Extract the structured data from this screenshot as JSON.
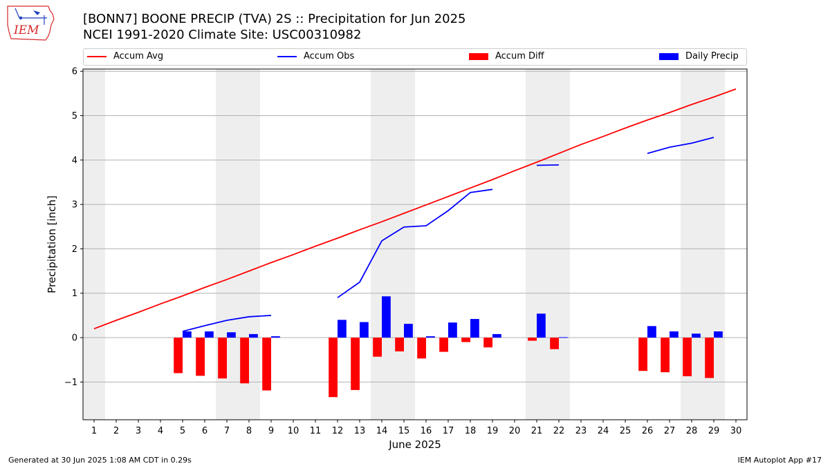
{
  "header": {
    "title": "[BONN7] BOONE PRECIP (TVA) 2S :: Precipitation for Jun 2025",
    "subtitle": "NCEI 1991-2020 Climate Site: USC00310982"
  },
  "logo": {
    "text": "IEM",
    "color": "#d62728"
  },
  "footer": {
    "left": "Generated at 30 Jun 2025 1:08 AM CDT in 0.29s",
    "right": "IEM Autoplot App #17"
  },
  "legend": [
    {
      "label": "Accum Avg",
      "kind": "line",
      "color": "#ff0000"
    },
    {
      "label": "Accum Obs",
      "kind": "line",
      "color": "#0000ff"
    },
    {
      "label": "Accum Diff",
      "kind": "bar",
      "color": "#ff0000"
    },
    {
      "label": "Daily Precip",
      "kind": "bar",
      "color": "#0000ff"
    }
  ],
  "chart_data": {
    "type": "bar",
    "xlabel": "June 2025",
    "ylabel": "Precipitation [inch]",
    "x": [
      1,
      2,
      3,
      4,
      5,
      6,
      7,
      8,
      9,
      10,
      11,
      12,
      13,
      14,
      15,
      16,
      17,
      18,
      19,
      20,
      21,
      22,
      23,
      24,
      25,
      26,
      27,
      28,
      29,
      30
    ],
    "ylim": [
      -1.85,
      6.05
    ],
    "yticks": [
      -1,
      0,
      1,
      2,
      3,
      4,
      5,
      6
    ],
    "ytick_labels": [
      "−1",
      "0",
      "1",
      "2",
      "3",
      "4",
      "5",
      "6"
    ],
    "grid": true,
    "legend_position": "top",
    "shaded_weekends": [
      [
        1,
        1
      ],
      [
        7,
        8
      ],
      [
        14,
        15
      ],
      [
        21,
        22
      ],
      [
        28,
        29
      ]
    ],
    "colors": {
      "avg": "#ff0000",
      "obs": "#0000ff",
      "diff": "#ff0000",
      "daily": "#0000ff",
      "shade": "#eeeeee"
    },
    "series": [
      {
        "name": "Accum Avg",
        "kind": "line",
        "values": [
          0.2,
          0.39,
          0.57,
          0.76,
          0.94,
          1.13,
          1.31,
          1.5,
          1.69,
          1.87,
          2.06,
          2.24,
          2.43,
          2.61,
          2.8,
          2.99,
          3.18,
          3.37,
          3.56,
          3.76,
          3.95,
          4.15,
          4.35,
          4.53,
          4.72,
          4.9,
          5.07,
          5.25,
          5.42,
          5.6
        ]
      },
      {
        "name": "Accum Obs",
        "kind": "line",
        "values": [
          null,
          null,
          null,
          null,
          0.14,
          0.27,
          0.39,
          0.47,
          0.5,
          null,
          null,
          0.9,
          1.25,
          2.18,
          2.49,
          2.52,
          2.86,
          3.27,
          3.34,
          null,
          3.88,
          3.89,
          null,
          null,
          null,
          4.15,
          4.29,
          4.38,
          4.51,
          null
        ]
      },
      {
        "name": "Accum Diff",
        "kind": "bar",
        "values": [
          null,
          null,
          null,
          null,
          -0.8,
          -0.86,
          -0.92,
          -1.03,
          -1.19,
          null,
          null,
          -1.34,
          -1.18,
          -0.43,
          -0.31,
          -0.47,
          -0.32,
          -0.1,
          -0.22,
          null,
          -0.07,
          -0.26,
          null,
          null,
          null,
          -0.75,
          -0.78,
          -0.87,
          -0.91,
          null
        ]
      },
      {
        "name": "Daily Precip",
        "kind": "bar",
        "values": [
          null,
          null,
          null,
          null,
          0.14,
          0.14,
          0.12,
          0.08,
          0.03,
          null,
          null,
          0.4,
          0.35,
          0.93,
          0.31,
          0.03,
          0.34,
          0.42,
          0.08,
          null,
          0.54,
          0.01,
          null,
          null,
          null,
          0.26,
          0.14,
          0.09,
          0.14,
          null
        ]
      }
    ]
  }
}
